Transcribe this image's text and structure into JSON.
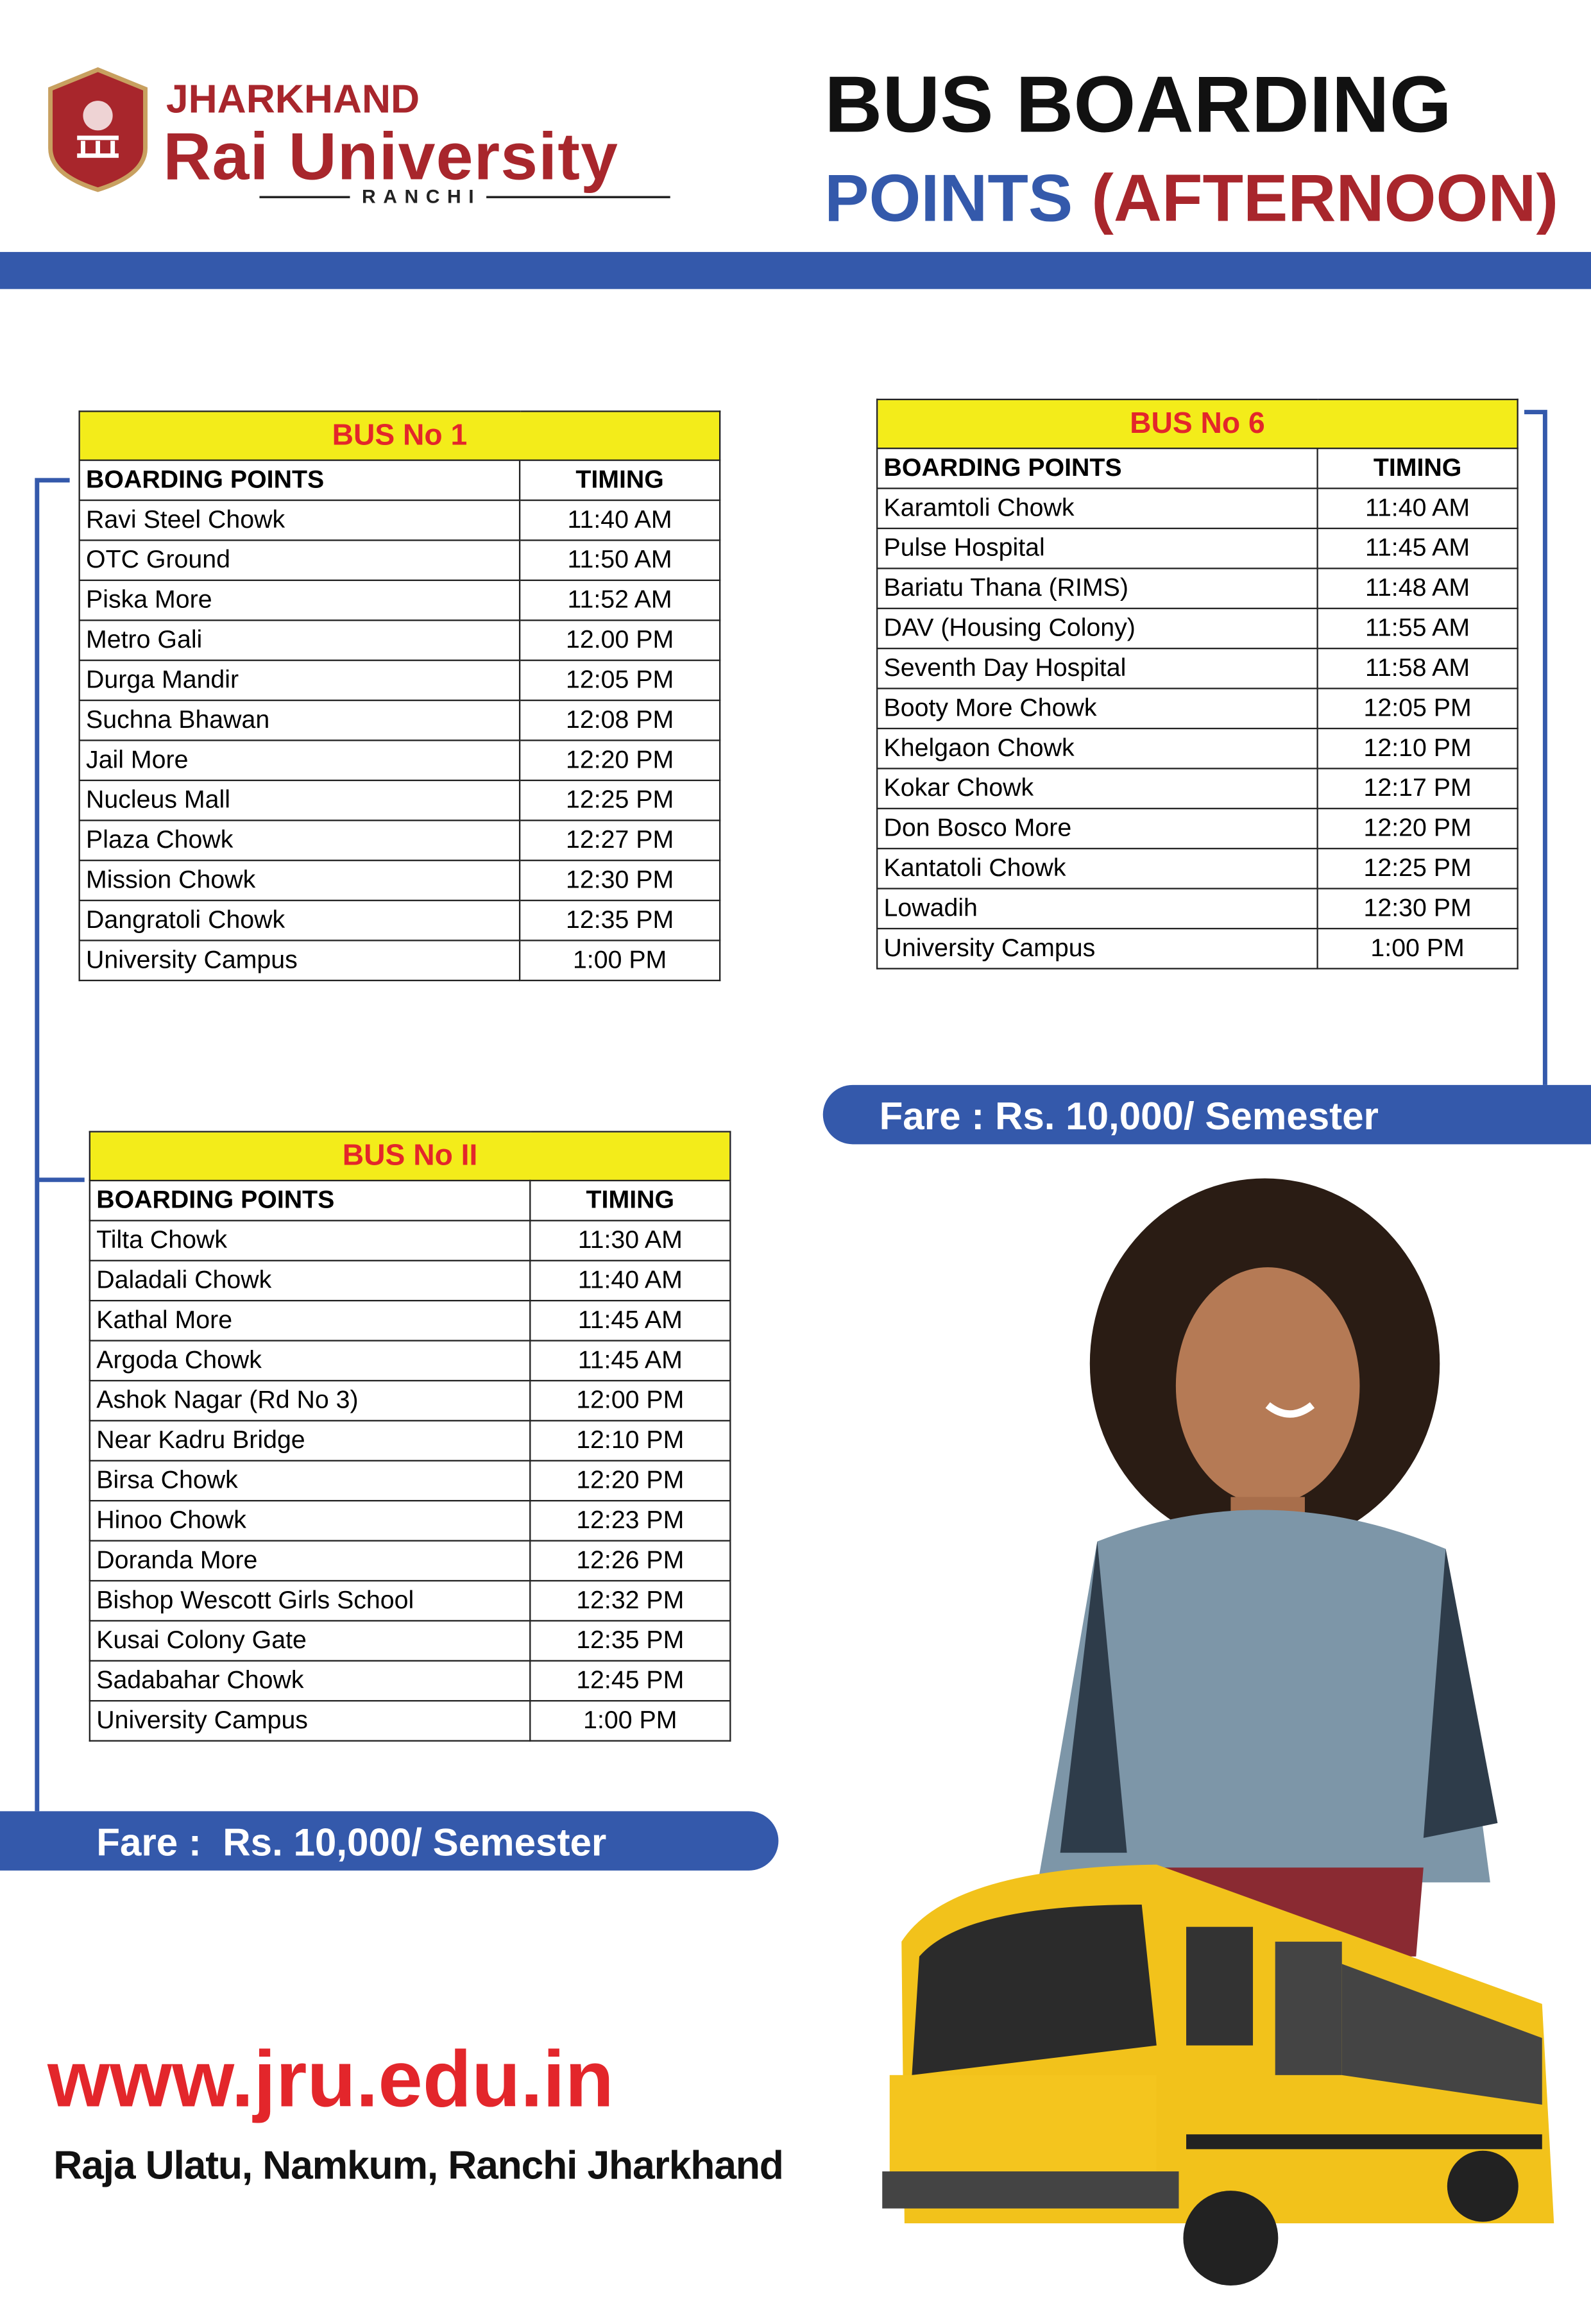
{
  "header": {
    "brand_top": "JHARKHAND",
    "brand_main": "Rai University",
    "brand_city": "RANCHI",
    "title_line1": "BUS BOARDING",
    "title_line2": "POINTS",
    "title_line2_suffix": "(AFTERNOON)"
  },
  "tables": [
    {
      "title": "BUS No 1",
      "columns": [
        "BOARDING POINTS",
        "TIMING"
      ],
      "rows": [
        [
          "Ravi Steel Chowk",
          "11:40 AM"
        ],
        [
          "OTC Ground",
          "11:50 AM"
        ],
        [
          "Piska More",
          "11:52 AM"
        ],
        [
          "Metro Gali",
          "12.00 PM"
        ],
        [
          "Durga Mandir",
          "12:05 PM"
        ],
        [
          "Suchna Bhawan",
          "12:08 PM"
        ],
        [
          "Jail More",
          "12:20 PM"
        ],
        [
          "Nucleus Mall",
          "12:25 PM"
        ],
        [
          "Plaza Chowk",
          "12:27 PM"
        ],
        [
          "Mission Chowk",
          "12:30 PM"
        ],
        [
          "Dangratoli Chowk",
          "12:35 PM"
        ],
        [
          "University Campus",
          "1:00 PM"
        ]
      ]
    },
    {
      "title": "BUS No 6",
      "columns": [
        "BOARDING POINTS",
        "TIMING"
      ],
      "rows": [
        [
          "Karamtoli Chowk",
          "11:40 AM"
        ],
        [
          "Pulse Hospital",
          "11:45 AM"
        ],
        [
          "Bariatu Thana (RIMS)",
          "11:48 AM"
        ],
        [
          "DAV (Housing Colony)",
          "11:55 AM"
        ],
        [
          "Seventh Day Hospital",
          "11:58 AM"
        ],
        [
          "Booty More Chowk",
          "12:05 PM"
        ],
        [
          "Khelgaon Chowk",
          "12:10 PM"
        ],
        [
          "Kokar Chowk",
          "12:17 PM"
        ],
        [
          "Don Bosco More",
          "12:20 PM"
        ],
        [
          "Kantatoli Chowk",
          "12:25 PM"
        ],
        [
          "Lowadih",
          "12:30 PM"
        ],
        [
          "University Campus",
          "1:00 PM"
        ]
      ],
      "fare": "Fare : Rs. 10,000/ Semester"
    },
    {
      "title": "BUS No II",
      "columns": [
        "BOARDING POINTS",
        "TIMING"
      ],
      "rows": [
        [
          "Tilta Chowk",
          "11:30 AM"
        ],
        [
          "Daladali Chowk",
          "11:40 AM"
        ],
        [
          "Kathal More",
          "11:45 AM"
        ],
        [
          "Argoda Chowk",
          "11:45 AM"
        ],
        [
          "Ashok Nagar (Rd No 3)",
          "12:00 PM"
        ],
        [
          "Near Kadru Bridge",
          "12:10 PM"
        ],
        [
          "Birsa Chowk",
          "12:20 PM"
        ],
        [
          "Hinoo Chowk",
          "12:23 PM"
        ],
        [
          "Doranda More",
          "12:26 PM"
        ],
        [
          "Bishop Wescott Girls School",
          "12:32 PM"
        ],
        [
          "Kusai Colony Gate",
          "12:35 PM"
        ],
        [
          "Sadabahar Chowk",
          "12:45 PM"
        ],
        [
          "University Campus",
          "1:00 PM"
        ]
      ],
      "fare": "Fare :  Rs. 10,000/ Semester"
    }
  ],
  "footer": {
    "website": "www.jru.edu.in",
    "address": "Raja Ulatu, Namkum, Ranchi Jharkhand"
  }
}
